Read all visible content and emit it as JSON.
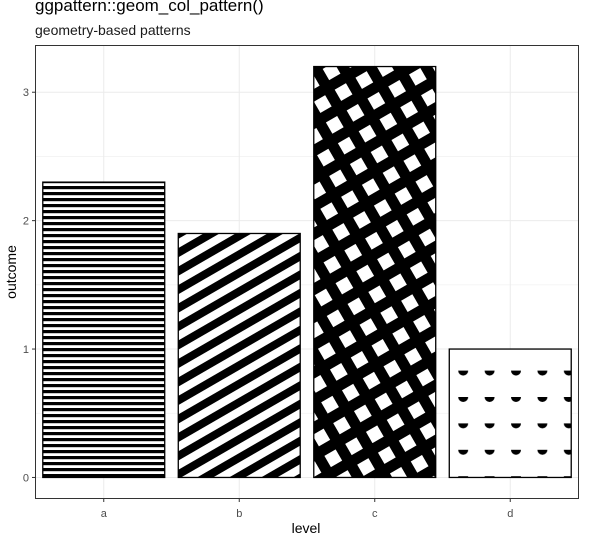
{
  "chart_data": {
    "type": "bar",
    "title": "ggpattern::geom_col_pattern()",
    "subtitle": "geometry-based patterns",
    "xlabel": "level",
    "ylabel": "outcome",
    "categories": [
      "a",
      "b",
      "c",
      "d"
    ],
    "values": [
      2.3,
      1.9,
      3.2,
      1.0
    ],
    "patterns": [
      "stripe-horizontal",
      "stripe-diagonal",
      "crosshatch",
      "circle-dots"
    ],
    "yticks": [
      0,
      1,
      2,
      3
    ],
    "ylim": [
      -0.16,
      3.36
    ],
    "grid": true,
    "colors": {
      "fill": "#000000",
      "background": "#ffffff",
      "grid": "#ebebeb",
      "panel_border": "#333333"
    }
  }
}
